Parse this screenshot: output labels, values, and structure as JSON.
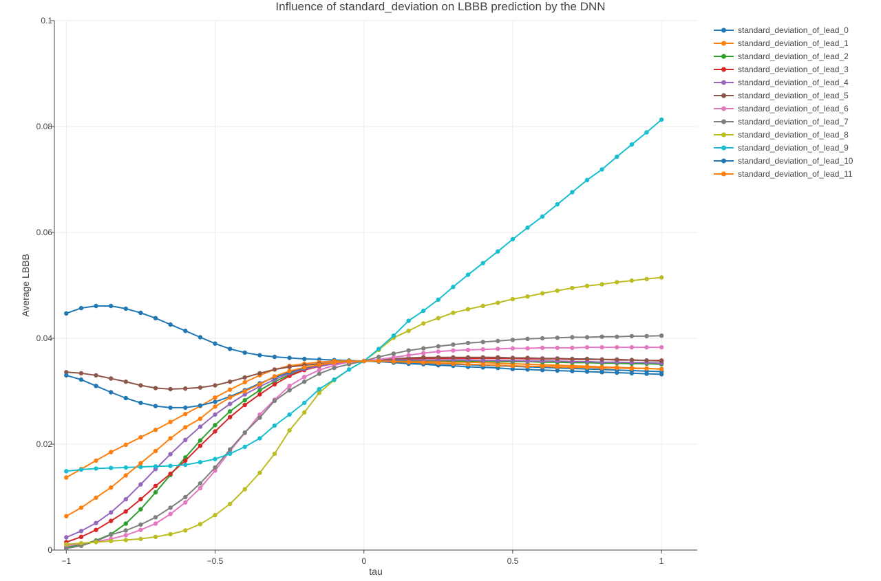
{
  "chart_data": {
    "type": "line",
    "title": "Influence of standard_deviation on LBBB prediction by the DNN",
    "xlabel": "tau",
    "ylabel": "Average LBBB",
    "xlim": [
      -1.04,
      1.12
    ],
    "ylim": [
      0,
      0.1
    ],
    "xticks": [
      -1,
      -0.5,
      0,
      0.5,
      1
    ],
    "xtick_labels": [
      "−1",
      "−0.5",
      "0",
      "0.5",
      "1"
    ],
    "yticks": [
      0,
      0.02,
      0.04,
      0.06,
      0.08,
      0.1
    ],
    "ytick_labels": [
      "0",
      "0.02",
      "0.04",
      "0.06",
      "0.08",
      "0.1"
    ],
    "grid": true,
    "legend_position": "right",
    "x": [
      -1,
      -0.95,
      -0.9,
      -0.85,
      -0.8,
      -0.75,
      -0.7,
      -0.65,
      -0.6,
      -0.55,
      -0.5,
      -0.45,
      -0.4,
      -0.35,
      -0.3,
      -0.25,
      -0.2,
      -0.15,
      -0.1,
      -0.05,
      0,
      0.05,
      0.1,
      0.15,
      0.2,
      0.25,
      0.3,
      0.35,
      0.4,
      0.45,
      0.5,
      0.55,
      0.6,
      0.65,
      0.7,
      0.75,
      0.8,
      0.85,
      0.9,
      0.95,
      1
    ],
    "series": [
      {
        "name": "standard_deviation_of_lead_0",
        "color": "#1f77b4",
        "values": [
          0.0447,
          0.0457,
          0.0461,
          0.0461,
          0.0456,
          0.0448,
          0.0438,
          0.0426,
          0.0414,
          0.0402,
          0.039,
          0.038,
          0.0373,
          0.0368,
          0.0365,
          0.0363,
          0.0361,
          0.036,
          0.0359,
          0.0358,
          0.0357,
          0.0356,
          0.0355,
          0.0354,
          0.0353,
          0.0352,
          0.0351,
          0.035,
          0.0349,
          0.0348,
          0.0347,
          0.0346,
          0.0345,
          0.0344,
          0.0343,
          0.0342,
          0.0341,
          0.034,
          0.0339,
          0.0338,
          0.0337
        ]
      },
      {
        "name": "standard_deviation_of_lead_1",
        "color": "#ff7f0e",
        "values": [
          0.0137,
          0.0153,
          0.0169,
          0.0185,
          0.0199,
          0.0213,
          0.0227,
          0.0242,
          0.0257,
          0.0272,
          0.0288,
          0.0303,
          0.0317,
          0.033,
          0.0341,
          0.0348,
          0.0352,
          0.0355,
          0.0357,
          0.0357,
          0.0357,
          0.0357,
          0.0357,
          0.0357,
          0.0356,
          0.0356,
          0.0355,
          0.0355,
          0.0354,
          0.0353,
          0.0352,
          0.0351,
          0.035,
          0.0349,
          0.0348,
          0.0347,
          0.0346,
          0.0345,
          0.0344,
          0.0343,
          0.0342
        ]
      },
      {
        "name": "standard_deviation_of_lead_2",
        "color": "#2ca02c",
        "values": [
          0.0005,
          0.001,
          0.0018,
          0.003,
          0.005,
          0.0077,
          0.0109,
          0.0142,
          0.0175,
          0.0207,
          0.0236,
          0.0262,
          0.0283,
          0.0302,
          0.0318,
          0.0331,
          0.0341,
          0.0348,
          0.0353,
          0.0356,
          0.0357,
          0.0358,
          0.0358,
          0.0358,
          0.0358,
          0.0358,
          0.0357,
          0.0357,
          0.0357,
          0.0356,
          0.0356,
          0.0356,
          0.0355,
          0.0355,
          0.0354,
          0.0354,
          0.0353,
          0.0353,
          0.0352,
          0.0352,
          0.0351
        ]
      },
      {
        "name": "standard_deviation_of_lead_3",
        "color": "#d62728",
        "values": [
          0.0015,
          0.0025,
          0.0038,
          0.0055,
          0.0073,
          0.0096,
          0.0121,
          0.0144,
          0.0169,
          0.0197,
          0.0224,
          0.0251,
          0.0274,
          0.0294,
          0.0313,
          0.0329,
          0.034,
          0.0347,
          0.0352,
          0.0355,
          0.0357,
          0.0359,
          0.036,
          0.0361,
          0.0362,
          0.0362,
          0.0362,
          0.0362,
          0.0362,
          0.0362,
          0.0362,
          0.0361,
          0.0361,
          0.0361,
          0.036,
          0.036,
          0.036,
          0.0359,
          0.0359,
          0.0358,
          0.0358
        ]
      },
      {
        "name": "standard_deviation_of_lead_4",
        "color": "#9467bd",
        "values": [
          0.0024,
          0.0036,
          0.0051,
          0.0071,
          0.0096,
          0.0124,
          0.0153,
          0.0181,
          0.0208,
          0.0233,
          0.0256,
          0.0276,
          0.0294,
          0.0309,
          0.0322,
          0.0334,
          0.0342,
          0.0348,
          0.0352,
          0.0355,
          0.0357,
          0.0358,
          0.0359,
          0.0359,
          0.0359,
          0.0359,
          0.0359,
          0.0359,
          0.0358,
          0.0358,
          0.0358,
          0.0357,
          0.0357,
          0.0357,
          0.0356,
          0.0356,
          0.0355,
          0.0355,
          0.0354,
          0.0354,
          0.0353
        ]
      },
      {
        "name": "standard_deviation_of_lead_5",
        "color": "#8c564b",
        "values": [
          0.0336,
          0.0334,
          0.033,
          0.0324,
          0.0318,
          0.0311,
          0.0306,
          0.0304,
          0.0305,
          0.0307,
          0.0311,
          0.0318,
          0.0326,
          0.0334,
          0.0341,
          0.0346,
          0.0349,
          0.0352,
          0.0354,
          0.0356,
          0.0357,
          0.0359,
          0.0361,
          0.0363,
          0.0364,
          0.0364,
          0.0364,
          0.0364,
          0.0364,
          0.0364,
          0.0363,
          0.0363,
          0.0362,
          0.0362,
          0.0361,
          0.0361,
          0.036,
          0.036,
          0.0359,
          0.0358,
          0.0357
        ]
      },
      {
        "name": "standard_deviation_of_lead_6",
        "color": "#e377c2",
        "values": [
          0.0008,
          0.0012,
          0.0016,
          0.0021,
          0.0028,
          0.0038,
          0.005,
          0.0068,
          0.009,
          0.0117,
          0.015,
          0.0187,
          0.0221,
          0.0256,
          0.0284,
          0.031,
          0.0327,
          0.034,
          0.0349,
          0.0355,
          0.0357,
          0.036,
          0.0364,
          0.0368,
          0.0372,
          0.0375,
          0.0377,
          0.0378,
          0.0379,
          0.038,
          0.0381,
          0.0381,
          0.0382,
          0.0382,
          0.0382,
          0.0383,
          0.0383,
          0.0383,
          0.0383,
          0.0383,
          0.0383
        ]
      },
      {
        "name": "standard_deviation_of_lead_7",
        "color": "#7f7f7f",
        "values": [
          0.0003,
          0.0008,
          0.0017,
          0.0029,
          0.0037,
          0.0048,
          0.0062,
          0.008,
          0.01,
          0.0126,
          0.0156,
          0.019,
          0.0222,
          0.025,
          0.0282,
          0.0302,
          0.0318,
          0.0333,
          0.0344,
          0.0351,
          0.0357,
          0.0365,
          0.0371,
          0.0377,
          0.0381,
          0.0385,
          0.0388,
          0.0391,
          0.0393,
          0.0395,
          0.0397,
          0.0399,
          0.04,
          0.0401,
          0.0402,
          0.0402,
          0.0403,
          0.0403,
          0.0404,
          0.0404,
          0.0405
        ]
      },
      {
        "name": "standard_deviation_of_lead_8",
        "color": "#bcbd22",
        "values": [
          0.0011,
          0.0013,
          0.0015,
          0.0017,
          0.0019,
          0.0021,
          0.0025,
          0.003,
          0.0037,
          0.0049,
          0.0066,
          0.0087,
          0.0115,
          0.0146,
          0.0182,
          0.0226,
          0.026,
          0.0297,
          0.0321,
          0.0341,
          0.0357,
          0.0378,
          0.0401,
          0.0414,
          0.0428,
          0.0438,
          0.0448,
          0.0455,
          0.0461,
          0.0467,
          0.0474,
          0.0479,
          0.0485,
          0.049,
          0.0495,
          0.0499,
          0.0502,
          0.0506,
          0.0509,
          0.0512,
          0.0515
        ]
      },
      {
        "name": "standard_deviation_of_lead_9",
        "color": "#17becf",
        "values": [
          0.0149,
          0.0152,
          0.0154,
          0.0155,
          0.0156,
          0.0157,
          0.0158,
          0.0159,
          0.0161,
          0.0166,
          0.0172,
          0.0182,
          0.0195,
          0.0211,
          0.0235,
          0.0256,
          0.0278,
          0.0304,
          0.0322,
          0.0341,
          0.0357,
          0.038,
          0.0405,
          0.0433,
          0.0452,
          0.0473,
          0.0497,
          0.052,
          0.0542,
          0.0564,
          0.0587,
          0.0609,
          0.063,
          0.0653,
          0.0676,
          0.0699,
          0.0719,
          0.0743,
          0.0766,
          0.0789,
          0.0813
        ]
      },
      {
        "name": "standard_deviation_of_lead_10",
        "color": "#1f77b4",
        "values": [
          0.033,
          0.0322,
          0.031,
          0.0298,
          0.0287,
          0.0278,
          0.0272,
          0.0269,
          0.0269,
          0.0273,
          0.028,
          0.029,
          0.0302,
          0.0315,
          0.0326,
          0.0336,
          0.0344,
          0.035,
          0.0354,
          0.0356,
          0.0357,
          0.0356,
          0.0354,
          0.0352,
          0.0351,
          0.0349,
          0.0348,
          0.0346,
          0.0345,
          0.0344,
          0.0342,
          0.0341,
          0.034,
          0.0339,
          0.0338,
          0.0337,
          0.0336,
          0.0335,
          0.0334,
          0.0333,
          0.0332
        ]
      },
      {
        "name": "standard_deviation_of_lead_11",
        "color": "#ff7f0e",
        "values": [
          0.0064,
          0.008,
          0.0099,
          0.0118,
          0.0141,
          0.0164,
          0.0187,
          0.0211,
          0.0232,
          0.0248,
          0.0271,
          0.0288,
          0.03,
          0.0313,
          0.0328,
          0.0338,
          0.0345,
          0.035,
          0.0354,
          0.0356,
          0.0357,
          0.0357,
          0.0356,
          0.0355,
          0.0354,
          0.0353,
          0.0352,
          0.0351,
          0.035,
          0.0349,
          0.0348,
          0.0347,
          0.0347,
          0.0346,
          0.0345,
          0.0345,
          0.0344,
          0.0344,
          0.0343,
          0.0343,
          0.0342
        ]
      }
    ]
  }
}
